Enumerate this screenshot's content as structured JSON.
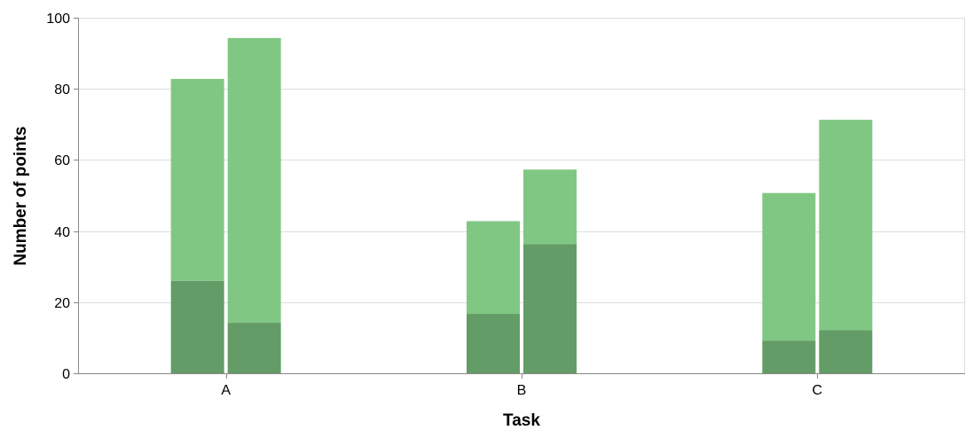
{
  "chart_data": {
    "type": "bar",
    "stacked": true,
    "grouped": true,
    "categories": [
      "A",
      "B",
      "C"
    ],
    "groups": [
      {
        "category": "A",
        "bars": [
          {
            "segments": [
              26,
              56.8
            ]
          },
          {
            "segments": [
              14.2,
              80.1
            ]
          }
        ]
      },
      {
        "category": "B",
        "bars": [
          {
            "segments": [
              16.7,
              26.1
            ]
          },
          {
            "segments": [
              36.3,
              21
            ]
          }
        ]
      },
      {
        "category": "C",
        "bars": [
          {
            "segments": [
              9.1,
              41.6
            ]
          },
          {
            "segments": [
              12.1,
              59.2
            ]
          }
        ]
      }
    ],
    "segment_colors": [
      "#639c66",
      "#81c784"
    ],
    "xlabel": "Task",
    "ylabel": "Number of points",
    "ylim": [
      0,
      100
    ],
    "yticks": [
      0,
      20,
      40,
      60,
      80,
      100
    ],
    "grid": true,
    "legend": "none"
  }
}
